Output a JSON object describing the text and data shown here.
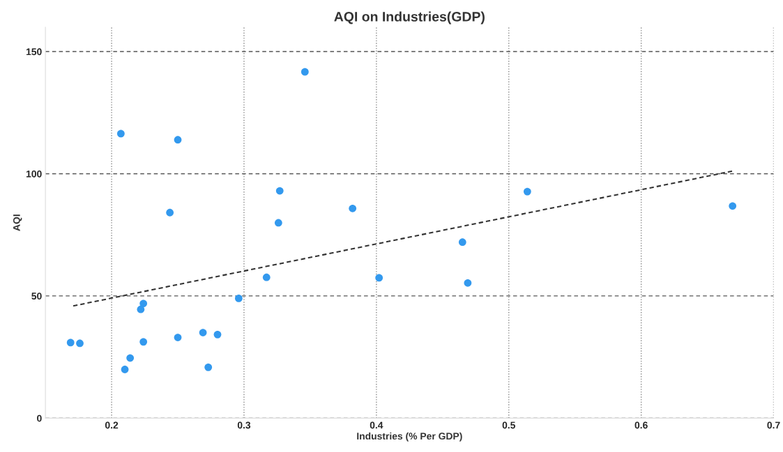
{
  "chart_data": {
    "type": "scatter",
    "title": "AQI on Industries(GDP)",
    "xlabel": "Industries (% Per GDP)",
    "ylabel": "AQI",
    "xlim": [
      0.15,
      0.7
    ],
    "xticks": [
      0.2,
      0.3,
      0.4,
      0.5,
      0.6,
      0.7
    ],
    "ylim": [
      0,
      160
    ],
    "yticks": [
      0,
      50,
      100,
      150
    ],
    "grid": true,
    "marker": "circle",
    "series": [
      {
        "color": "#3399ee",
        "x": [
          0.169,
          0.176,
          0.207,
          0.21,
          0.214,
          0.222,
          0.224,
          0.224,
          0.244,
          0.25,
          0.25,
          0.269,
          0.273,
          0.28,
          0.296,
          0.317,
          0.326,
          0.327,
          0.346,
          0.382,
          0.402,
          0.465,
          0.469,
          0.514,
          0.669
        ],
        "values": [
          30.9,
          30.6,
          116.4,
          19.9,
          24.6,
          44.5,
          46.9,
          31.2,
          84.1,
          113.9,
          33.0,
          35.0,
          20.8,
          34.2,
          49.0,
          57.6,
          79.9,
          93.0,
          141.7,
          85.8,
          57.4,
          72.0,
          55.3,
          92.7,
          86.8
        ]
      },
      {
        "type": "line",
        "color": "#333333",
        "line_style": "dashed",
        "marker": "none",
        "x": [
          0.171,
          0.669
        ],
        "values": [
          45.9,
          101.1
        ]
      }
    ]
  }
}
